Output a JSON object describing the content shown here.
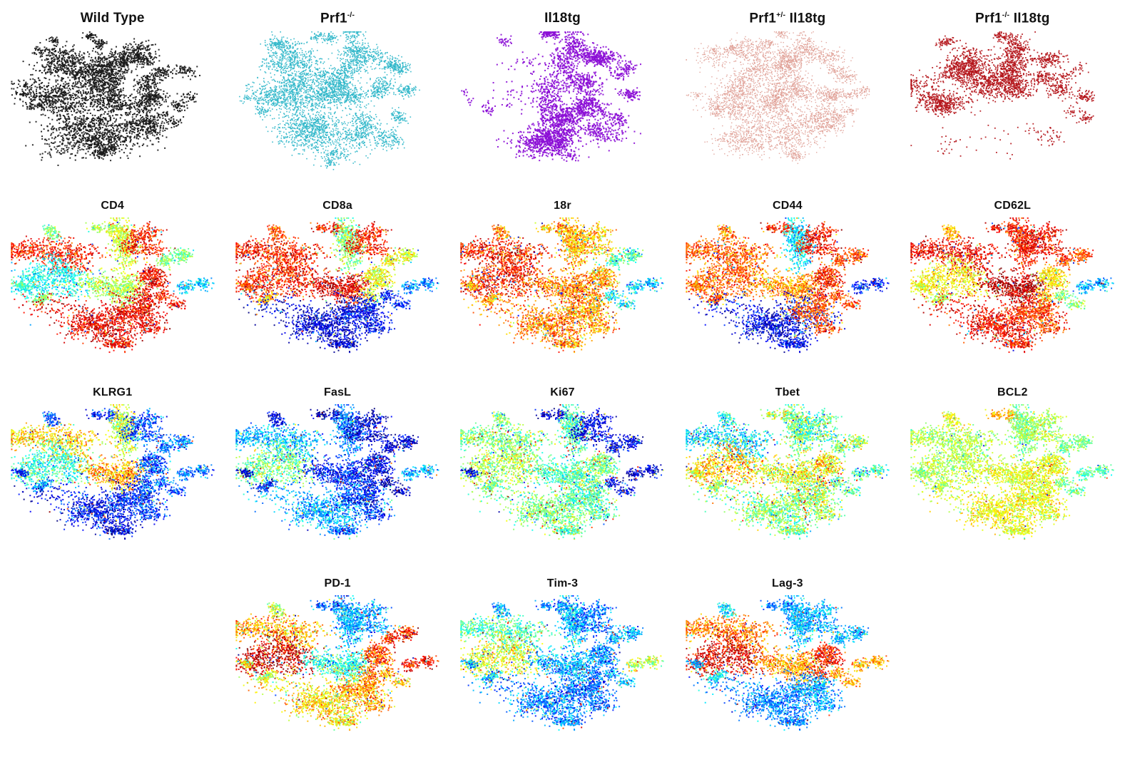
{
  "figure": {
    "title": "",
    "background": "#ffffff",
    "text_color": "#111111"
  },
  "chart_data": {
    "type": "scatter",
    "subtype": "tsne_panel_grid",
    "grid": {
      "columns": 5,
      "rows": 4,
      "row4_grid_columns": [
        2,
        3,
        4
      ]
    },
    "colormap": {
      "name": "jet",
      "low": "#00008f",
      "mid": "#7dff7d",
      "high": "#7f0000"
    },
    "clusters": [
      {
        "x": 0.44,
        "y": 0.06,
        "rx": 0.045,
        "ry": 0.04,
        "n": 110
      },
      {
        "x": 0.29,
        "y": 0.21,
        "rx": 0.13,
        "ry": 0.085,
        "n": 620
      },
      {
        "x": 0.52,
        "y": 0.24,
        "rx": 0.065,
        "ry": 0.13,
        "n": 420
      },
      {
        "x": 0.655,
        "y": 0.19,
        "rx": 0.085,
        "ry": 0.065,
        "n": 340
      },
      {
        "x": 0.795,
        "y": 0.28,
        "rx": 0.06,
        "ry": 0.05,
        "n": 190
      },
      {
        "x": 0.235,
        "y": 0.425,
        "rx": 0.125,
        "ry": 0.085,
        "n": 620
      },
      {
        "x": 0.475,
        "y": 0.43,
        "rx": 0.095,
        "ry": 0.095,
        "n": 560
      },
      {
        "x": 0.665,
        "y": 0.43,
        "rx": 0.075,
        "ry": 0.07,
        "n": 340
      },
      {
        "x": 0.85,
        "y": 0.46,
        "rx": 0.05,
        "ry": 0.045,
        "n": 150
      },
      {
        "x": 0.05,
        "y": 0.46,
        "rx": 0.035,
        "ry": 0.03,
        "n": 60
      },
      {
        "x": 0.13,
        "y": 0.565,
        "rx": 0.04,
        "ry": 0.035,
        "n": 80
      },
      {
        "x": 0.4,
        "y": 0.7,
        "rx": 0.15,
        "ry": 0.115,
        "n": 950
      },
      {
        "x": 0.645,
        "y": 0.635,
        "rx": 0.085,
        "ry": 0.075,
        "n": 380
      },
      {
        "x": 0.8,
        "y": 0.59,
        "rx": 0.05,
        "ry": 0.045,
        "n": 120
      },
      {
        "x": 0.5,
        "y": 0.875,
        "rx": 0.05,
        "ry": 0.04,
        "n": 110
      },
      {
        "x": 0.2,
        "y": 0.095,
        "rx": 0.04,
        "ry": 0.035,
        "n": 80
      }
    ],
    "genotype_panels": [
      {
        "id": "wild-type",
        "label": {
          "text": "Wild Type",
          "sup": "",
          "text2": ""
        },
        "color": "#1a1a1a",
        "dot": 2.0,
        "weights": [
          0.9,
          0.85,
          0.85,
          0.9,
          0.7,
          0.9,
          1,
          0.85,
          0.55,
          0.35,
          0.5,
          1,
          0.9,
          0.55,
          0.7,
          0.7
        ]
      },
      {
        "id": "prf1-ko",
        "label": {
          "text": "Prf1",
          "sup": "-/-",
          "text2": ""
        },
        "color": "#2eb6c9",
        "dot": 1.6,
        "weights": [
          0.9,
          1,
          0.9,
          0.9,
          0.75,
          1,
          1,
          0.85,
          0.6,
          0.4,
          0.55,
          1,
          0.9,
          0.6,
          0.7,
          0.75
        ]
      },
      {
        "id": "il18tg",
        "label": {
          "text": "Il18tg",
          "sup": "",
          "text2": ""
        },
        "color": "#8b0ed6",
        "dot": 2.0,
        "weights": [
          0.85,
          0.05,
          0.95,
          0.9,
          0.5,
          0.06,
          0.75,
          0.65,
          0.5,
          0.25,
          0.35,
          1,
          0.95,
          0.5,
          0.6,
          0.35
        ]
      },
      {
        "id": "prf1-het-il18tg",
        "label": {
          "text": "Prf1",
          "sup": "+/-",
          "text2": " Il18tg"
        },
        "color": "#df9f96",
        "dot": 1.4,
        "weights": [
          0.85,
          0.95,
          0.9,
          0.9,
          0.7,
          0.95,
          0.95,
          0.85,
          0.6,
          0.4,
          0.5,
          1,
          0.9,
          0.6,
          0.65,
          0.7
        ]
      },
      {
        "id": "prf1-ko-il18tg",
        "label": {
          "text": "Prf1",
          "sup": "-/-",
          "text2": " Il18tg"
        },
        "color": "#b4151a",
        "dot": 1.8,
        "weights": [
          0.65,
          1,
          0.85,
          0.65,
          0.3,
          1,
          0.7,
          0.6,
          0.45,
          0.35,
          0.45,
          0.04,
          0.12,
          0.5,
          0.03,
          0.8
        ]
      }
    ],
    "marker_panels": [
      {
        "id": "cd4",
        "label": {
          "text": "CD4",
          "sup": "",
          "text2": ""
        },
        "noise": 0.06,
        "outlier": 0.05,
        "expr": [
          0.55,
          0.85,
          0.58,
          0.85,
          0.5,
          0.38,
          0.55,
          0.88,
          0.32,
          0.42,
          0.5,
          0.9,
          0.88,
          0.85,
          0.88,
          0.5
        ]
      },
      {
        "id": "cd8a",
        "label": {
          "text": "CD8a",
          "sup": "",
          "text2": ""
        },
        "noise": 0.07,
        "outlier": 0.05,
        "expr": [
          0.85,
          0.85,
          0.5,
          0.85,
          0.6,
          0.85,
          0.9,
          0.6,
          0.25,
          0.8,
          0.7,
          0.08,
          0.12,
          0.15,
          0.08,
          0.8
        ]
      },
      {
        "id": "18r",
        "label": {
          "text": "18r",
          "sup": "",
          "text2": ""
        },
        "noise": 0.08,
        "outlier": 0.08,
        "expr": [
          0.7,
          0.85,
          0.7,
          0.68,
          0.45,
          0.85,
          0.75,
          0.72,
          0.32,
          0.7,
          0.72,
          0.75,
          0.7,
          0.38,
          0.72,
          0.75
        ]
      },
      {
        "id": "cd44",
        "label": {
          "text": "CD44",
          "sup": "",
          "text2": ""
        },
        "noise": 0.07,
        "outlier": 0.05,
        "expr": [
          0.85,
          0.78,
          0.35,
          0.85,
          0.8,
          0.78,
          0.72,
          0.85,
          0.15,
          0.75,
          0.75,
          0.1,
          0.8,
          0.8,
          0.12,
          0.75
        ]
      },
      {
        "id": "cd62l",
        "label": {
          "text": "CD62L",
          "sup": "",
          "text2": ""
        },
        "noise": 0.06,
        "outlier": 0.04,
        "expr": [
          0.88,
          0.88,
          0.85,
          0.88,
          0.8,
          0.62,
          0.95,
          0.65,
          0.3,
          0.6,
          0.55,
          0.88,
          0.8,
          0.5,
          0.85,
          0.7
        ]
      },
      {
        "id": "klrg1",
        "label": {
          "text": "KLRG1",
          "sup": "",
          "text2": ""
        },
        "noise": 0.08,
        "outlier": 0.05,
        "expr": [
          0.15,
          0.65,
          0.58,
          0.2,
          0.25,
          0.42,
          0.7,
          0.2,
          0.25,
          0.15,
          0.3,
          0.12,
          0.18,
          0.2,
          0.1,
          0.2
        ]
      },
      {
        "id": "fasl",
        "label": {
          "text": "FasL",
          "sup": "",
          "text2": ""
        },
        "noise": 0.08,
        "outlier": 0.04,
        "expr": [
          0.05,
          0.3,
          0.25,
          0.08,
          0.08,
          0.5,
          0.15,
          0.1,
          0.3,
          0.05,
          0.12,
          0.3,
          0.15,
          0.05,
          0.2,
          0.1
        ]
      },
      {
        "id": "ki67",
        "label": {
          "text": "Ki67",
          "sup": "",
          "text2": ""
        },
        "noise": 0.07,
        "outlier": 0.09,
        "expr": [
          0.08,
          0.5,
          0.45,
          0.1,
          0.1,
          0.55,
          0.45,
          0.5,
          0.08,
          0.12,
          0.5,
          0.5,
          0.45,
          0.1,
          0.45,
          0.5
        ]
      },
      {
        "id": "tbet",
        "label": {
          "text": "Tbet",
          "sup": "",
          "text2": ""
        },
        "noise": 0.09,
        "outlier": 0.08,
        "expr": [
          0.55,
          0.35,
          0.5,
          0.45,
          0.55,
          0.68,
          0.6,
          0.65,
          0.45,
          0.6,
          0.55,
          0.5,
          0.55,
          0.45,
          0.5,
          0.4
        ]
      },
      {
        "id": "bcl2",
        "label": {
          "text": "BCL2",
          "sup": "",
          "text2": ""
        },
        "noise": 0.06,
        "outlier": 0.02,
        "expr": [
          0.7,
          0.55,
          0.5,
          0.55,
          0.5,
          0.55,
          0.6,
          0.6,
          0.45,
          0.5,
          0.55,
          0.62,
          0.6,
          0.5,
          0.6,
          0.6
        ]
      },
      {
        "id": "pd-1",
        "label": {
          "text": "PD-1",
          "sup": "",
          "text2": ""
        },
        "noise": 0.08,
        "outlier": 0.05,
        "expr": [
          0.2,
          0.7,
          0.3,
          0.28,
          0.85,
          0.92,
          0.4,
          0.8,
          0.85,
          0.6,
          0.55,
          0.65,
          0.72,
          0.7,
          0.62,
          0.55
        ]
      },
      {
        "id": "tim-3",
        "label": {
          "text": "Tim-3",
          "sup": "",
          "text2": ""
        },
        "noise": 0.08,
        "outlier": 0.06,
        "expr": [
          0.25,
          0.45,
          0.3,
          0.25,
          0.3,
          0.6,
          0.3,
          0.25,
          0.55,
          0.3,
          0.35,
          0.25,
          0.22,
          0.3,
          0.25,
          0.3
        ]
      },
      {
        "id": "lag-3",
        "label": {
          "text": "Lag-3",
          "sup": "",
          "text2": ""
        },
        "noise": 0.07,
        "outlier": 0.05,
        "expr": [
          0.25,
          0.75,
          0.3,
          0.3,
          0.3,
          0.9,
          0.72,
          0.85,
          0.7,
          0.3,
          0.4,
          0.25,
          0.3,
          0.7,
          0.25,
          0.35
        ]
      }
    ]
  }
}
